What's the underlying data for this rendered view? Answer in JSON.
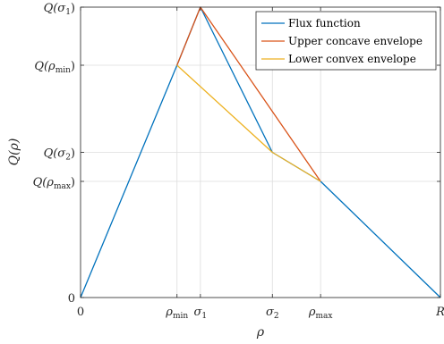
{
  "chart_data": {
    "type": "line",
    "xlabel": "ρ",
    "ylabel": "Q(ρ)",
    "xlim": [
      0,
      1
    ],
    "ylim": [
      0,
      1
    ],
    "grid": true,
    "legend_position": "top-right",
    "x_ticks": [
      {
        "value": 0,
        "base": "0",
        "sub": ""
      },
      {
        "value": 0.268,
        "base": "ρ",
        "sub": "min"
      },
      {
        "value": 0.333,
        "base": "σ",
        "sub": "1"
      },
      {
        "value": 0.533,
        "base": "σ",
        "sub": "2"
      },
      {
        "value": 0.667,
        "base": "ρ",
        "sub": "max"
      },
      {
        "value": 1,
        "base": "R",
        "sub": ""
      }
    ],
    "y_ticks": [
      {
        "value": 0,
        "text": "0",
        "sub": ""
      },
      {
        "value": 0.4,
        "text": "Q(ρ",
        "sub": "max",
        "close": ")"
      },
      {
        "value": 0.5,
        "text": "Q(σ",
        "sub": "2",
        "close": ")"
      },
      {
        "value": 0.8,
        "text": "Q(ρ",
        "sub": "min",
        "close": ")"
      },
      {
        "value": 1,
        "text": "Q(σ",
        "sub": "1",
        "close": ")"
      }
    ],
    "series": [
      {
        "name": "Flux function",
        "color": "#0072BD",
        "x": [
          0,
          0.268,
          0.333,
          0.533,
          0.667,
          1
        ],
        "y": [
          0,
          0.8,
          1,
          0.5,
          0.4,
          0
        ]
      },
      {
        "name": "Upper concave envelope",
        "color": "#D95319",
        "x": [
          0.268,
          0.333,
          0.667
        ],
        "y": [
          0.8,
          1,
          0.4
        ]
      },
      {
        "name": "Lower convex envelope",
        "color": "#EDB120",
        "x": [
          0.268,
          0.533,
          0.667
        ],
        "y": [
          0.8,
          0.5,
          0.4
        ]
      }
    ]
  }
}
